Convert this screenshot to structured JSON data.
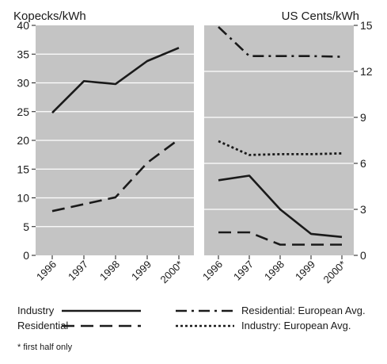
{
  "chart_data": [
    {
      "type": "line",
      "ylabel": "Kopecks/kWh",
      "ylim": [
        0,
        40
      ],
      "yticks": [
        "0",
        "5",
        "10",
        "15",
        "20",
        "25",
        "30",
        "35",
        "40"
      ],
      "grid": true,
      "categories": [
        "1996",
        "1997",
        "1998",
        "1999",
        "2000*"
      ],
      "series": [
        {
          "name": "Industry",
          "style": "solid",
          "values": [
            24.8,
            30.3,
            29.8,
            33.8,
            36.1
          ]
        },
        {
          "name": "Residential",
          "style": "dashed",
          "values": [
            7.7,
            8.9,
            10.1,
            16.1,
            20.2
          ]
        }
      ]
    },
    {
      "type": "line",
      "ylabel": "US Cents/kWh",
      "ylim": [
        0,
        15
      ],
      "yticks": [
        "0",
        "3",
        "6",
        "9",
        "12",
        "15"
      ],
      "grid": true,
      "categories": [
        "1996",
        "1997",
        "1998",
        "1999",
        "2000*"
      ],
      "series": [
        {
          "name": "Residential: European Avg.",
          "style": "dashdot",
          "values": [
            14.9,
            13.0,
            13.0,
            13.0,
            12.95
          ]
        },
        {
          "name": "Industry: European Avg.",
          "style": "dotted",
          "values": [
            7.45,
            6.55,
            6.6,
            6.6,
            6.65
          ]
        },
        {
          "name": "Industry",
          "style": "solid",
          "values": [
            4.9,
            5.2,
            3.0,
            1.4,
            1.2
          ]
        },
        {
          "name": "Residential",
          "style": "dashed",
          "values": [
            1.5,
            1.5,
            0.7,
            0.7,
            0.7
          ]
        }
      ]
    }
  ],
  "legend": [
    {
      "label": "Industry",
      "style": "solid"
    },
    {
      "label": "Residential",
      "style": "dashed"
    },
    {
      "label": "Residential: European Avg.",
      "style": "dashdot"
    },
    {
      "label": "Industry: European Avg.",
      "style": "dotted"
    }
  ],
  "footnote": "* first half only",
  "colors": {
    "plot_bg": "#c4c4c4",
    "grid": "#ffffff",
    "line": "#1a1a1a"
  }
}
